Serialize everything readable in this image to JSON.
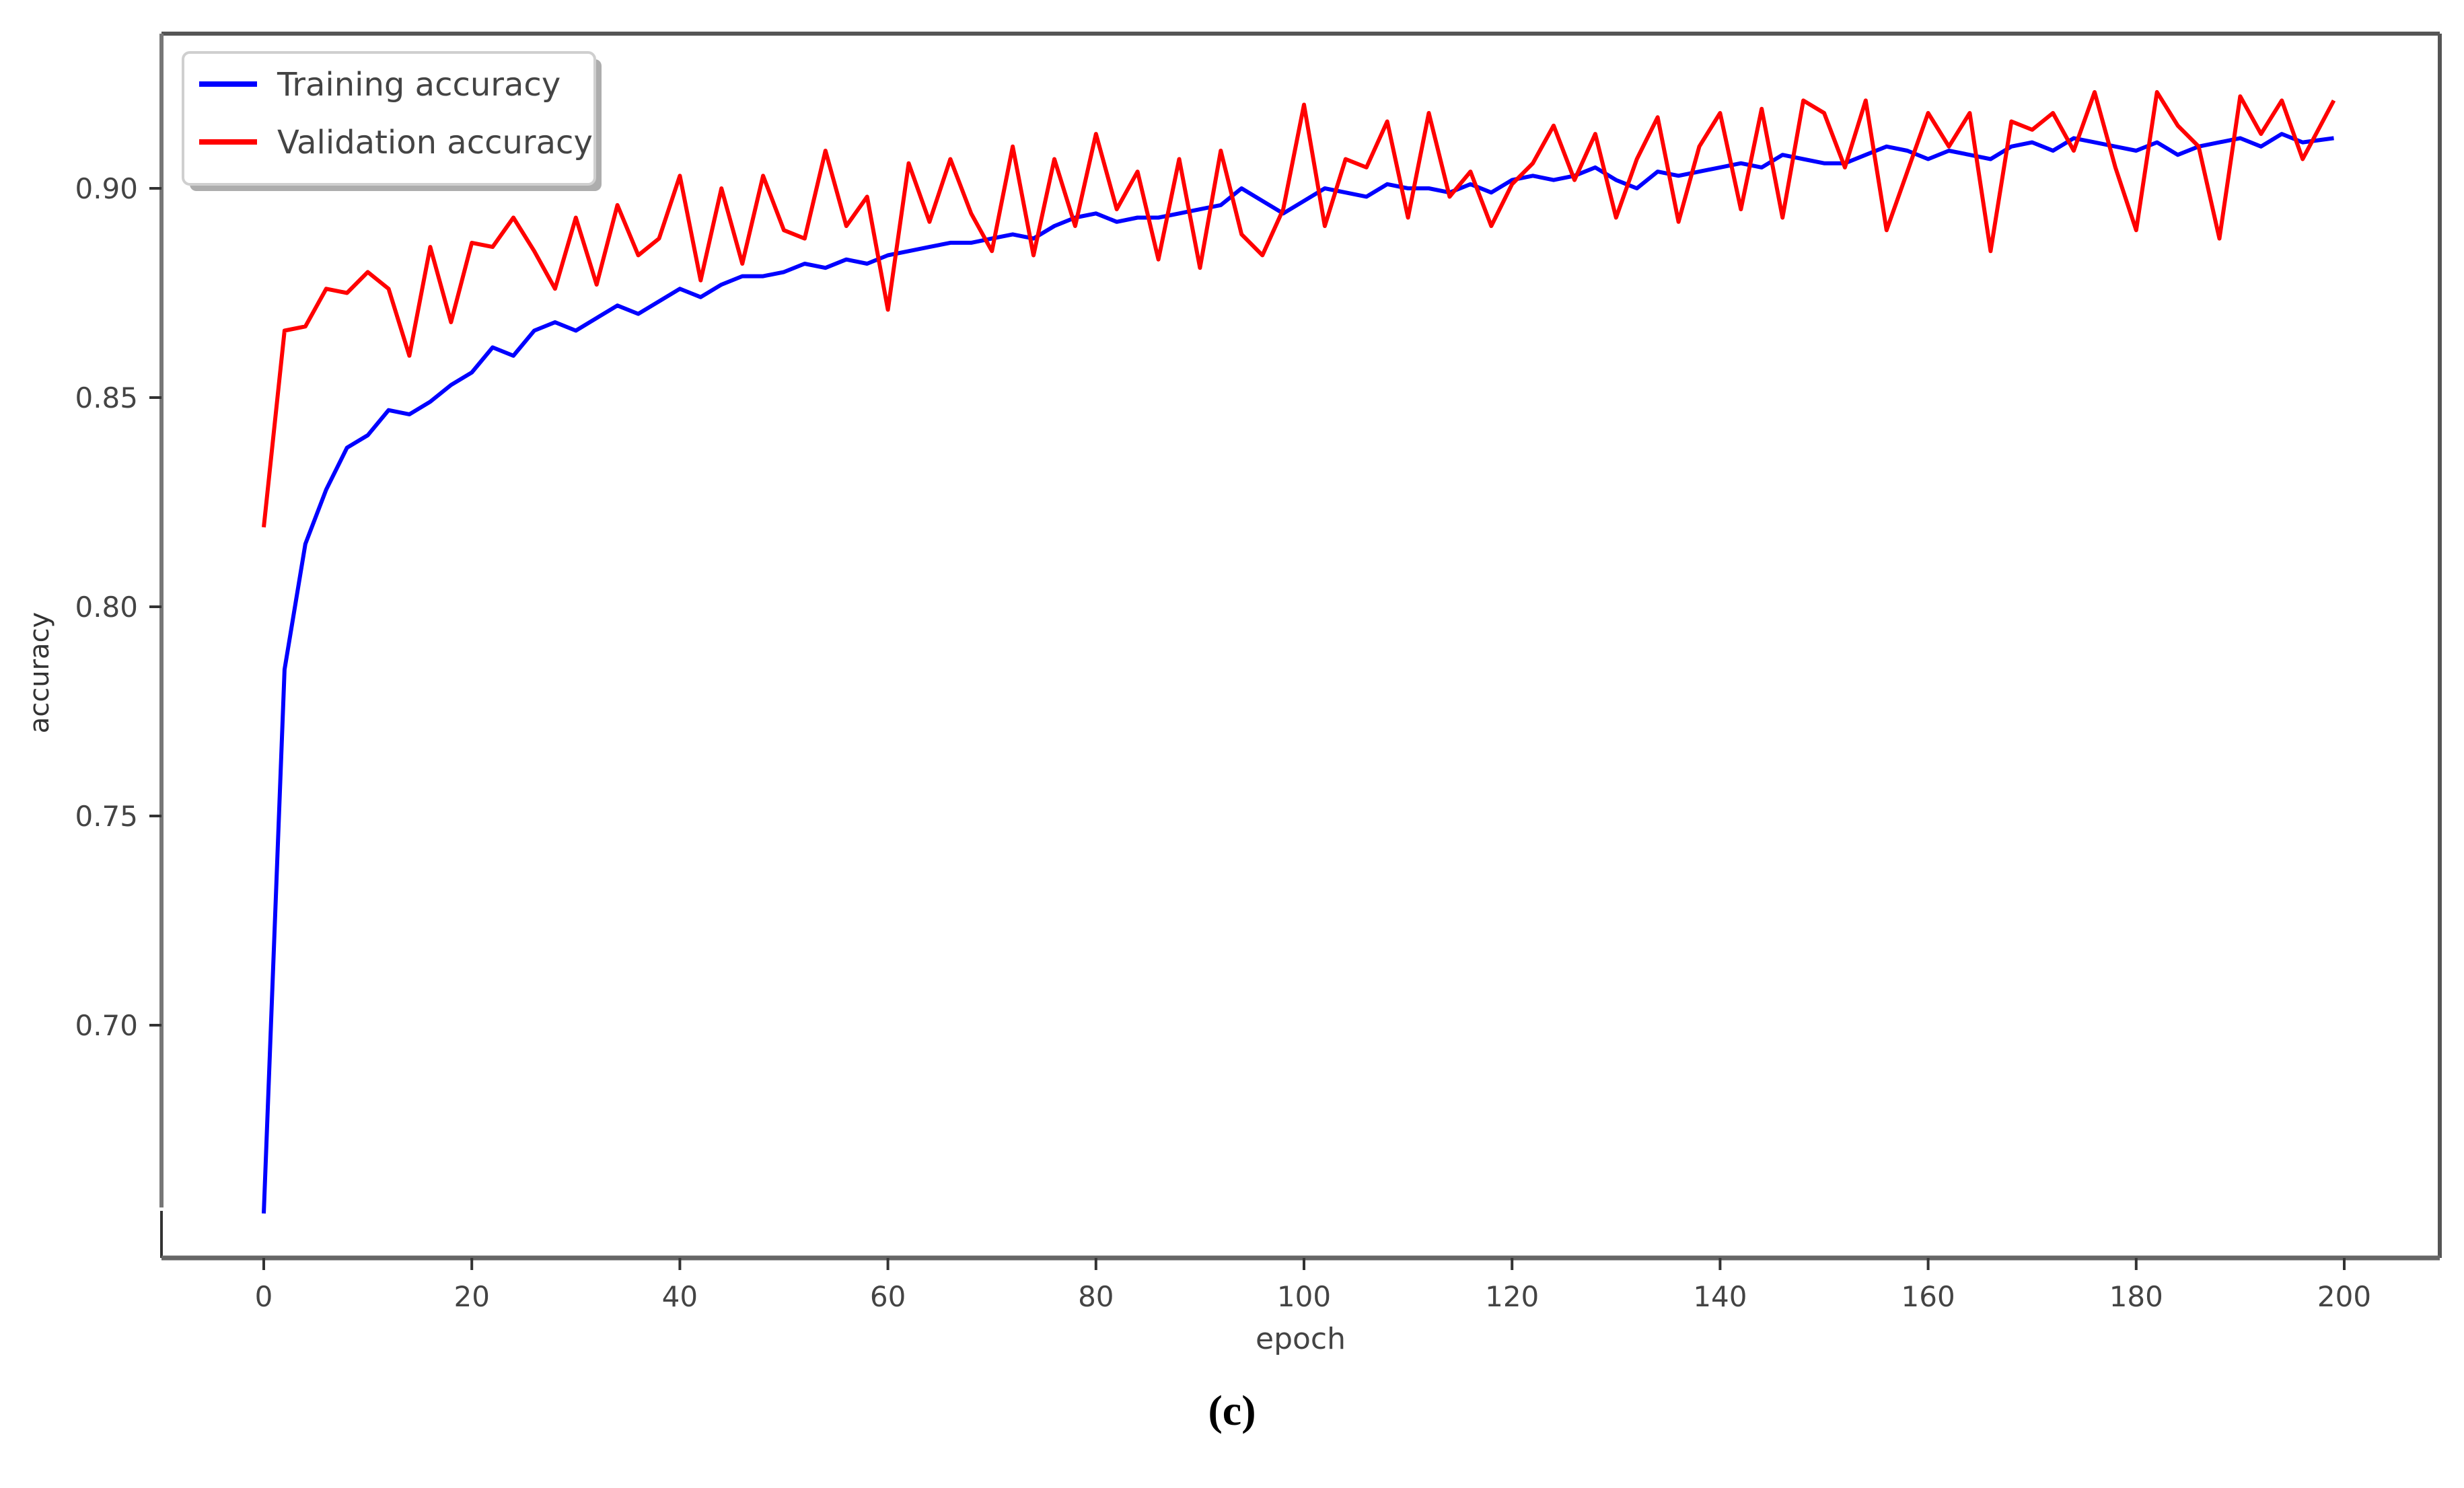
{
  "chart_data": {
    "type": "line",
    "title": "",
    "xlabel": "epoch",
    "ylabel": "accuracy",
    "xlim": [
      -10,
      210
    ],
    "ylim": [
      0.645,
      0.93
    ],
    "xticks": [
      0,
      20,
      40,
      60,
      80,
      100,
      120,
      140,
      160,
      180,
      200
    ],
    "xtick_labels": [
      "0",
      "20",
      "40",
      "60",
      "80",
      "100",
      "120",
      "140",
      "160",
      "180",
      "200"
    ],
    "yticks": [
      0.7,
      0.75,
      0.8,
      0.85,
      0.9
    ],
    "ytick_labels": [
      "0.70",
      "0.75",
      "0.80",
      "0.85",
      "0.90"
    ],
    "grid": false,
    "legend_position": "upper left",
    "x": [
      0,
      2,
      4,
      6,
      8,
      10,
      12,
      14,
      16,
      18,
      20,
      22,
      24,
      26,
      28,
      30,
      32,
      34,
      36,
      38,
      40,
      42,
      44,
      46,
      48,
      50,
      52,
      54,
      56,
      58,
      60,
      62,
      64,
      66,
      68,
      70,
      72,
      74,
      76,
      78,
      80,
      82,
      84,
      86,
      88,
      90,
      92,
      94,
      96,
      98,
      100,
      102,
      104,
      106,
      108,
      110,
      112,
      114,
      116,
      118,
      120,
      122,
      124,
      126,
      128,
      130,
      132,
      134,
      136,
      138,
      140,
      142,
      144,
      146,
      148,
      150,
      152,
      154,
      156,
      158,
      160,
      162,
      164,
      166,
      168,
      170,
      172,
      174,
      176,
      178,
      180,
      182,
      184,
      186,
      188,
      190,
      192,
      194,
      196,
      199
    ],
    "series": [
      {
        "name": "Training accuracy",
        "color": "#0000ff",
        "values": [
          0.655,
          0.785,
          0.815,
          0.828,
          0.838,
          0.841,
          0.847,
          0.846,
          0.849,
          0.853,
          0.856,
          0.862,
          0.86,
          0.866,
          0.868,
          0.866,
          0.869,
          0.872,
          0.87,
          0.873,
          0.876,
          0.874,
          0.877,
          0.879,
          0.879,
          0.88,
          0.882,
          0.881,
          0.883,
          0.882,
          0.884,
          0.885,
          0.886,
          0.887,
          0.887,
          0.888,
          0.889,
          0.888,
          0.891,
          0.893,
          0.894,
          0.892,
          0.893,
          0.893,
          0.894,
          0.895,
          0.896,
          0.9,
          0.897,
          0.894,
          0.897,
          0.9,
          0.899,
          0.898,
          0.901,
          0.9,
          0.9,
          0.899,
          0.901,
          0.899,
          0.902,
          0.903,
          0.902,
          0.903,
          0.905,
          0.902,
          0.9,
          0.904,
          0.903,
          0.904,
          0.905,
          0.906,
          0.905,
          0.908,
          0.907,
          0.906,
          0.906,
          0.908,
          0.91,
          0.909,
          0.907,
          0.909,
          0.908,
          0.907,
          0.91,
          0.911,
          0.909,
          0.912,
          0.911,
          0.91,
          0.909,
          0.911,
          0.908,
          0.91,
          0.911,
          0.912,
          0.91,
          0.913,
          0.911,
          0.912
        ]
      },
      {
        "name": "Validation accuracy",
        "color": "#ff0000",
        "values": [
          0.819,
          0.866,
          0.867,
          0.876,
          0.875,
          0.88,
          0.876,
          0.86,
          0.886,
          0.868,
          0.887,
          0.886,
          0.893,
          0.885,
          0.876,
          0.893,
          0.877,
          0.896,
          0.884,
          0.888,
          0.903,
          0.878,
          0.9,
          0.882,
          0.903,
          0.89,
          0.888,
          0.909,
          0.891,
          0.898,
          0.871,
          0.906,
          0.892,
          0.907,
          0.894,
          0.885,
          0.91,
          0.884,
          0.907,
          0.891,
          0.913,
          0.895,
          0.904,
          0.883,
          0.907,
          0.881,
          0.909,
          0.889,
          0.884,
          0.895,
          0.92,
          0.891,
          0.907,
          0.905,
          0.916,
          0.893,
          0.918,
          0.898,
          0.904,
          0.891,
          0.901,
          0.906,
          0.915,
          0.902,
          0.913,
          0.893,
          0.907,
          0.917,
          0.892,
          0.91,
          0.918,
          0.895,
          0.919,
          0.893,
          0.921,
          0.918,
          0.905,
          0.921,
          0.89,
          0.904,
          0.918,
          0.91,
          0.918,
          0.885,
          0.916,
          0.914,
          0.918,
          0.909,
          0.923,
          0.905,
          0.89,
          0.923,
          0.915,
          0.91,
          0.888,
          0.922,
          0.913,
          0.921,
          0.907,
          0.921
        ]
      }
    ]
  },
  "figure": {
    "caption": "(c)"
  }
}
